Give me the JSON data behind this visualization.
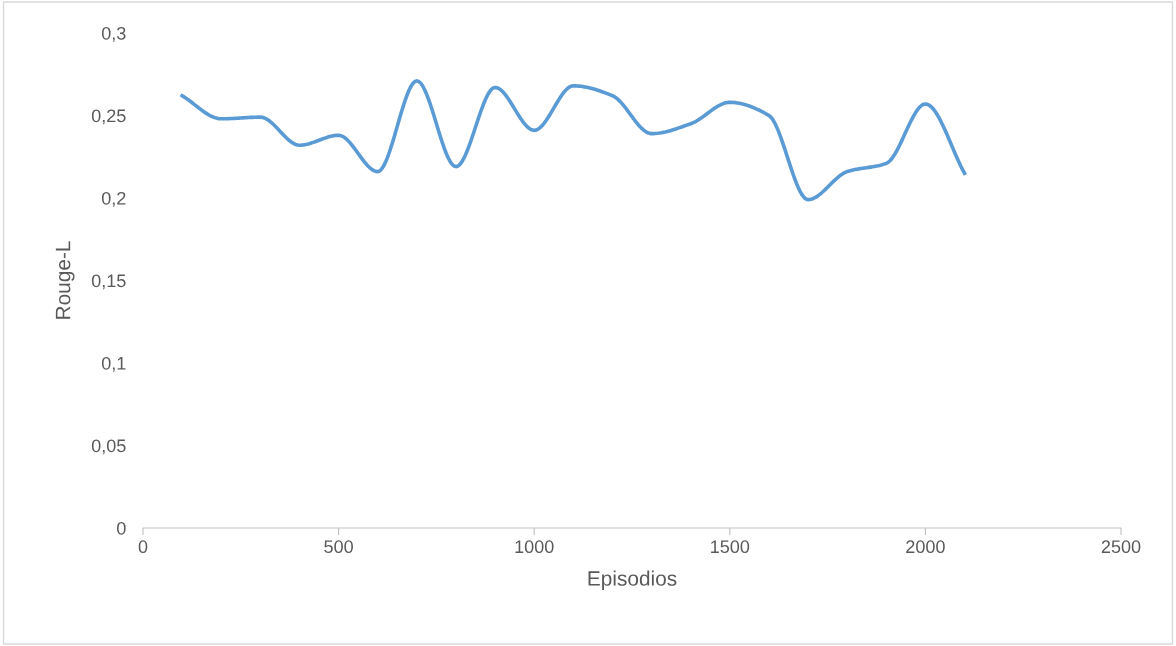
{
  "chart_data": {
    "type": "line",
    "xlabel": "Episodios",
    "ylabel": "Rouge-L",
    "x": [
      100,
      200,
      300,
      400,
      500,
      600,
      700,
      800,
      900,
      1000,
      1100,
      1200,
      1300,
      1400,
      1500,
      1600,
      1700,
      1800,
      1900,
      2000,
      2100
    ],
    "series": [
      {
        "color": "#5b9bd5",
        "values": [
          0.262,
          0.248,
          0.249,
          0.232,
          0.238,
          0.216,
          0.271,
          0.219,
          0.267,
          0.241,
          0.268,
          0.262,
          0.239,
          0.245,
          0.258,
          0.25,
          0.199,
          0.216,
          0.221,
          0.257,
          0.215
        ]
      }
    ],
    "xlim": [
      0,
      2500
    ],
    "xticks": [
      0,
      500,
      1000,
      1500,
      2000,
      2500
    ],
    "ylim": [
      0,
      0.3
    ],
    "yticks": [
      0,
      {
        "value": 0.05,
        "label": "0,05"
      },
      {
        "value": 0.1,
        "label": "0,1"
      },
      {
        "value": 0.15,
        "label": "0,15"
      },
      {
        "value": 0.2,
        "label": "0,2"
      },
      {
        "value": 0.25,
        "label": "0,25"
      },
      {
        "value": 0.3,
        "label": "0,3"
      }
    ],
    "grid": false,
    "legend": false,
    "marker": "none",
    "line_style": "solid"
  }
}
